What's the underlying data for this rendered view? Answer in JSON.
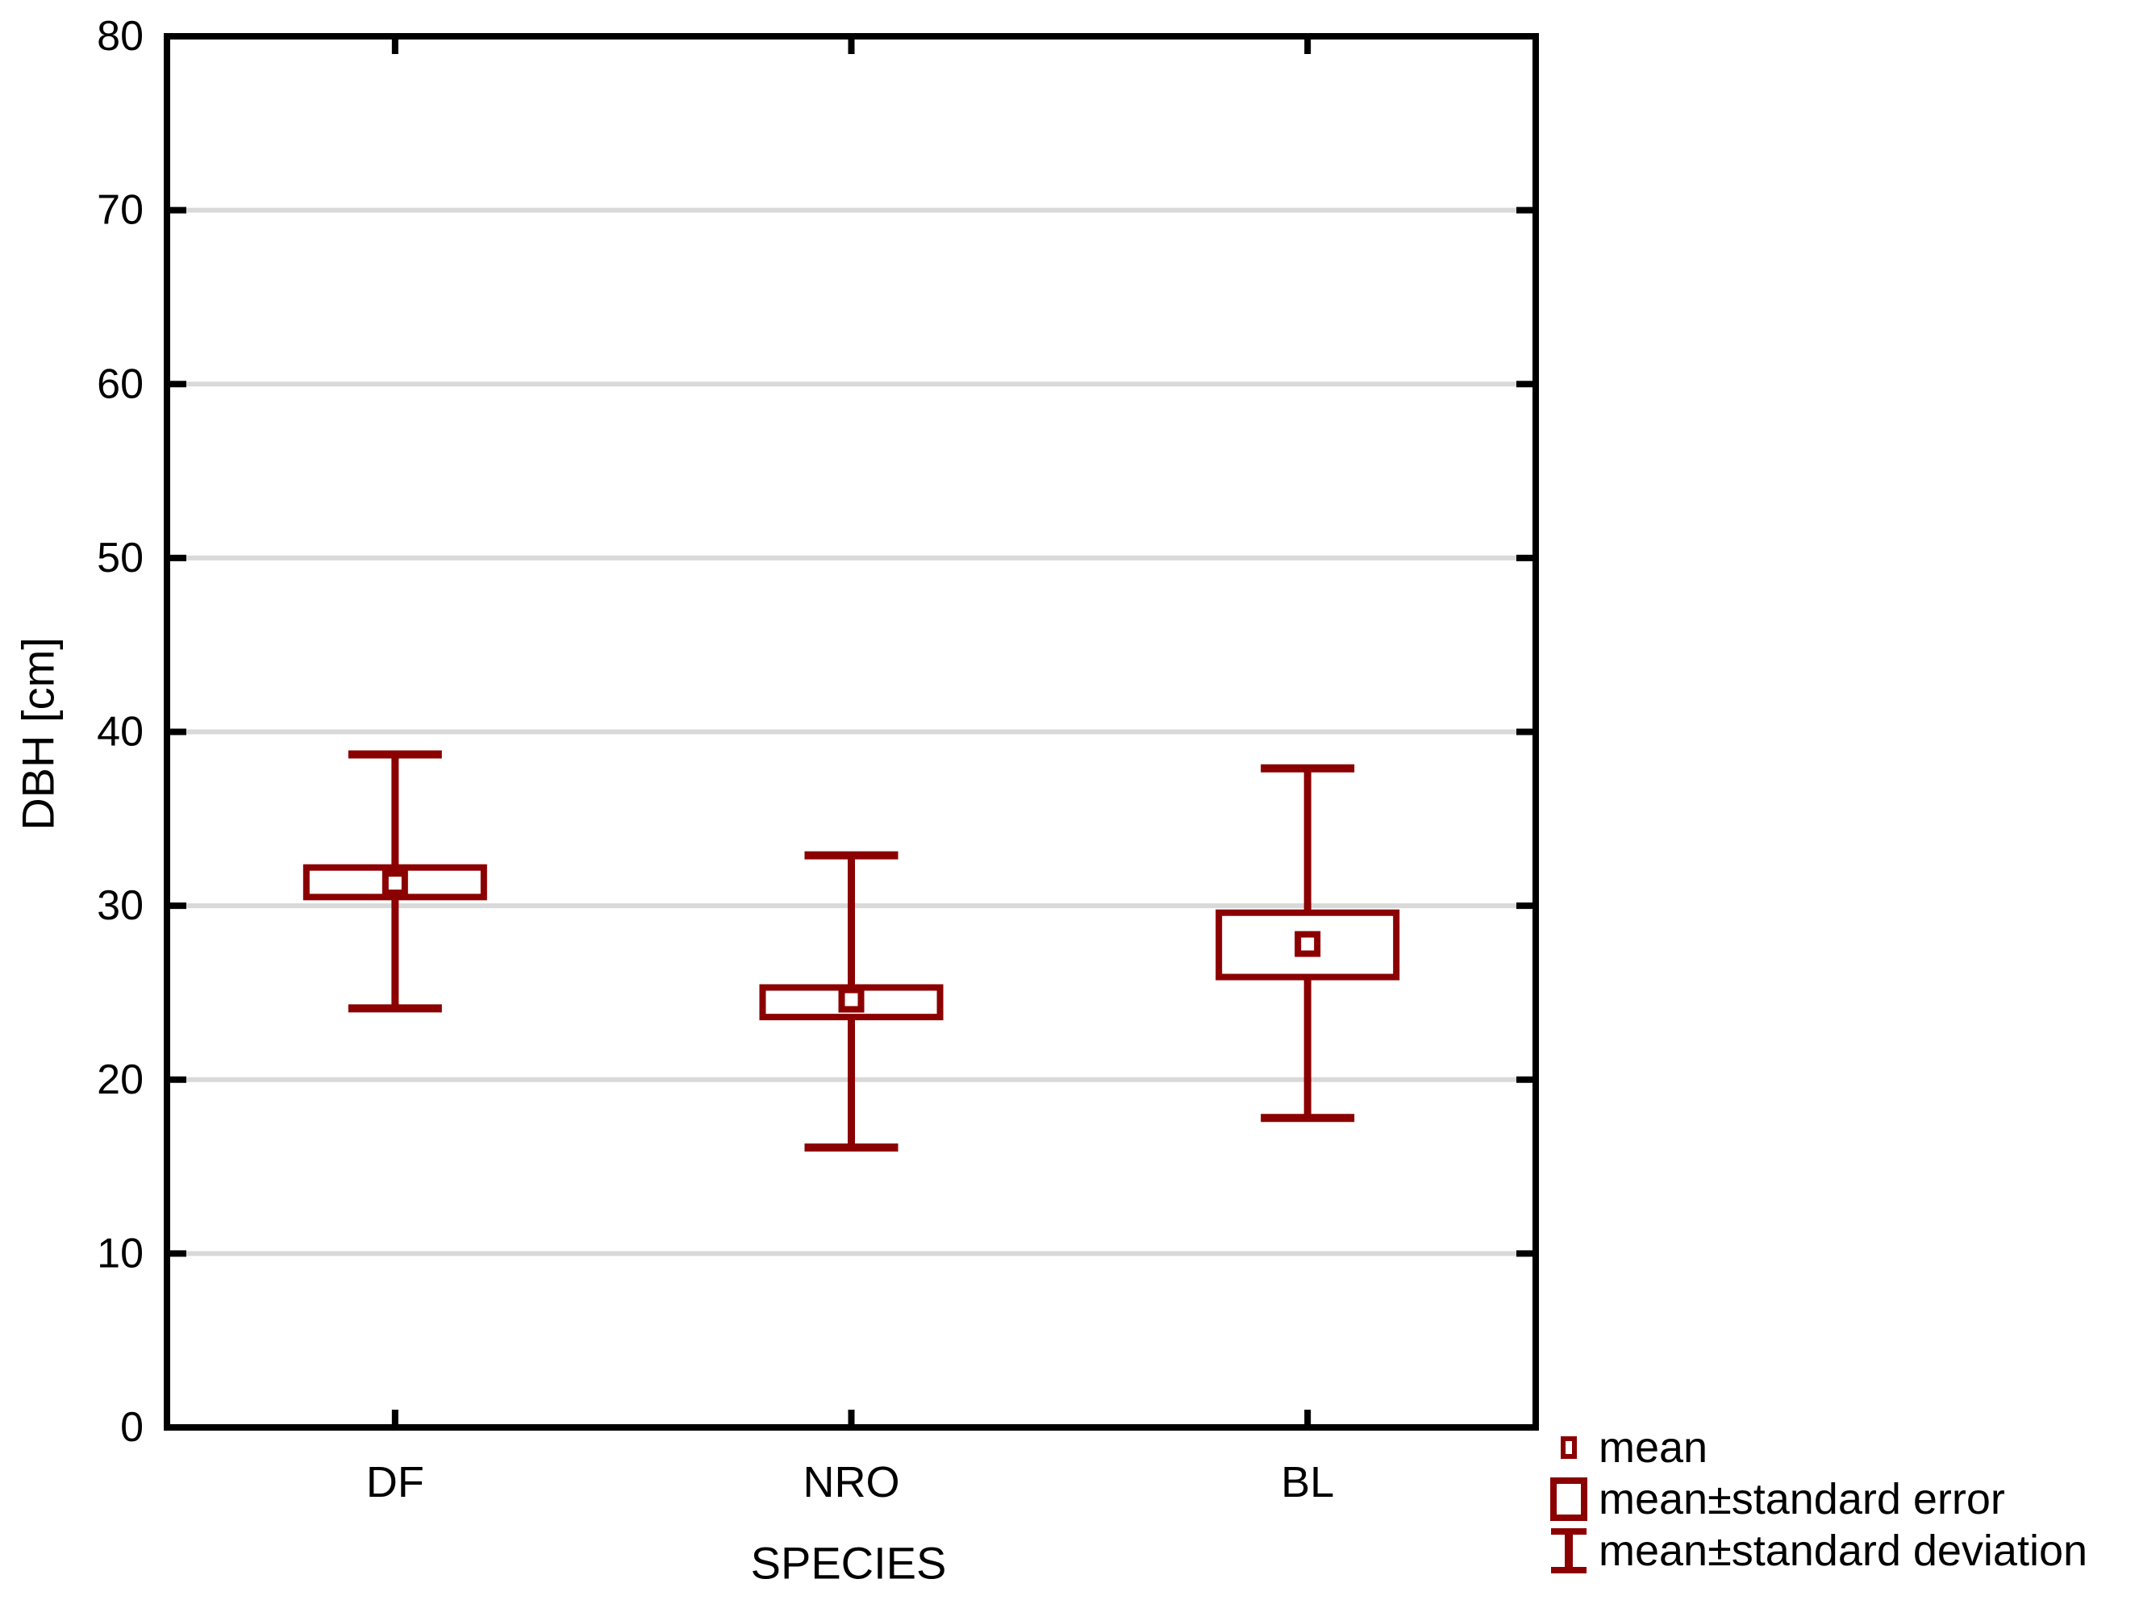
{
  "chart_data": {
    "type": "box-whisker-mean",
    "xlabel": "SPECIES",
    "ylabel": "DBH [cm]",
    "categories": [
      "DF",
      "NRO",
      "BL"
    ],
    "ylim": [
      0,
      80
    ],
    "yticks": [
      0,
      10,
      20,
      30,
      40,
      50,
      60,
      70,
      80
    ],
    "grid": "horizontal-light-gray",
    "legend_position": "bottom-right",
    "series": [
      {
        "name": "DF",
        "mean": 31.3,
        "se_range": [
          30.5,
          32.2
        ],
        "sd_range": [
          24.1,
          38.7
        ]
      },
      {
        "name": "NRO",
        "mean": 24.6,
        "se_range": [
          23.6,
          25.3
        ],
        "sd_range": [
          16.1,
          32.9
        ]
      },
      {
        "name": "BL",
        "mean": 27.8,
        "se_range": [
          25.9,
          29.6
        ],
        "sd_range": [
          17.8,
          37.9
        ]
      }
    ],
    "legend": {
      "items": [
        {
          "label": "mean",
          "icon": "mean-marker-icon"
        },
        {
          "label": "mean±standard error",
          "icon": "se-box-icon"
        },
        {
          "label": "mean±standard deviation",
          "icon": "sd-whisker-icon"
        }
      ]
    }
  },
  "colors": {
    "series": "#8B0000",
    "grid": "#D9D9D9",
    "axis": "#000000",
    "background": "#FFFFFF",
    "text": "#000000"
  }
}
